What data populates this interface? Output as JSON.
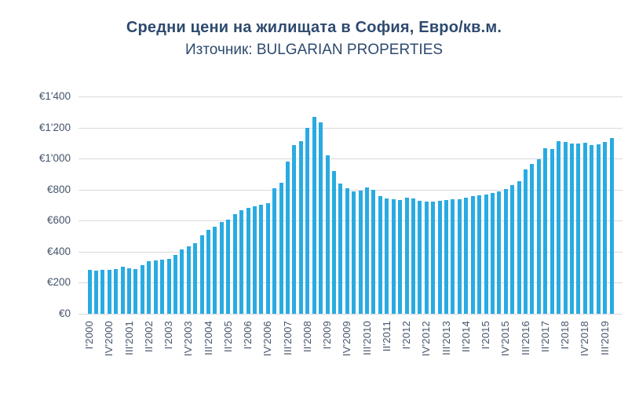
{
  "header": {
    "title": "Средни цени на жилищата в София, Евро/кв.м.",
    "subtitle": "Източник: BULGARIAN PROPERTIES"
  },
  "chart_data": {
    "type": "bar",
    "title": "Средни цени на жилищата в София, Евро/кв.м.",
    "subtitle": "Източник: BULGARIAN PROPERTIES",
    "xlabel": "",
    "ylabel": "",
    "ylim": [
      0,
      1400
    ],
    "y_ticks": [
      1400,
      1200,
      1000,
      800,
      600,
      400,
      200,
      0
    ],
    "y_tick_labels": [
      "€1'400",
      "€1'200",
      "€1'000",
      "€800",
      "€600",
      "€400",
      "€200",
      "€0"
    ],
    "x_tick_every": 3,
    "grid": "horizontal",
    "legend_position": "none",
    "bar_color": "#29ABE2",
    "grid_color": "#D9D9E0",
    "axis_text_color": "#44546A",
    "title_color": "#2E4A6E",
    "categories": [
      "I'2000",
      "II'2000",
      "III'2000",
      "IV'2000",
      "I'2001",
      "II'2001",
      "III'2001",
      "IV'2001",
      "I'2002",
      "II'2002",
      "III'2002",
      "IV'2002",
      "I'2003",
      "II'2003",
      "III'2003",
      "IV'2003",
      "I'2004",
      "II'2004",
      "III'2004",
      "IV'2004",
      "I'2005",
      "II'2005",
      "III'2005",
      "IV'2005",
      "I'2006",
      "II'2006",
      "III'2006",
      "IV'2006",
      "I'2007",
      "II'2007",
      "III'2007",
      "IV'2007",
      "I'2008",
      "II'2008",
      "III'2008",
      "IV'2008",
      "I'2009",
      "II'2009",
      "III'2009",
      "IV'2009",
      "I'2010",
      "II'2010",
      "III'2010",
      "IV'2010",
      "I'2011",
      "II'2011",
      "III'2011",
      "IV'2011",
      "I'2012",
      "II'2012",
      "III'2012",
      "IV'2012",
      "I'2013",
      "II'2013",
      "III'2013",
      "IV'2013",
      "I'2014",
      "II'2014",
      "III'2014",
      "IV'2014",
      "I'2015",
      "II'2015",
      "III'2015",
      "IV'2015",
      "I'2016",
      "II'2016",
      "III'2016",
      "IV'2016",
      "I'2017",
      "II'2017",
      "III'2017",
      "IV'2017",
      "I'2018",
      "II'2018",
      "III'2018",
      "IV'2018",
      "I'2019",
      "II'2019",
      "III'2019",
      "IV'2019"
    ],
    "values": [
      285,
      280,
      281,
      284,
      288,
      304,
      291,
      289,
      312,
      337,
      344,
      349,
      354,
      377,
      413,
      435,
      457,
      505,
      540,
      560,
      592,
      605,
      640,
      665,
      680,
      692,
      705,
      715,
      810,
      845,
      980,
      1088,
      1113,
      1198,
      1267,
      1231,
      1020,
      919,
      838,
      810,
      789,
      793,
      815,
      801,
      759,
      742,
      737,
      734,
      747,
      742,
      730,
      725,
      722,
      730,
      734,
      737,
      737,
      747,
      759,
      764,
      768,
      776,
      788,
      805,
      827,
      855,
      928,
      965,
      995,
      1066,
      1063,
      1110,
      1105,
      1096,
      1096,
      1100,
      1088,
      1093,
      1105,
      1133
    ]
  }
}
